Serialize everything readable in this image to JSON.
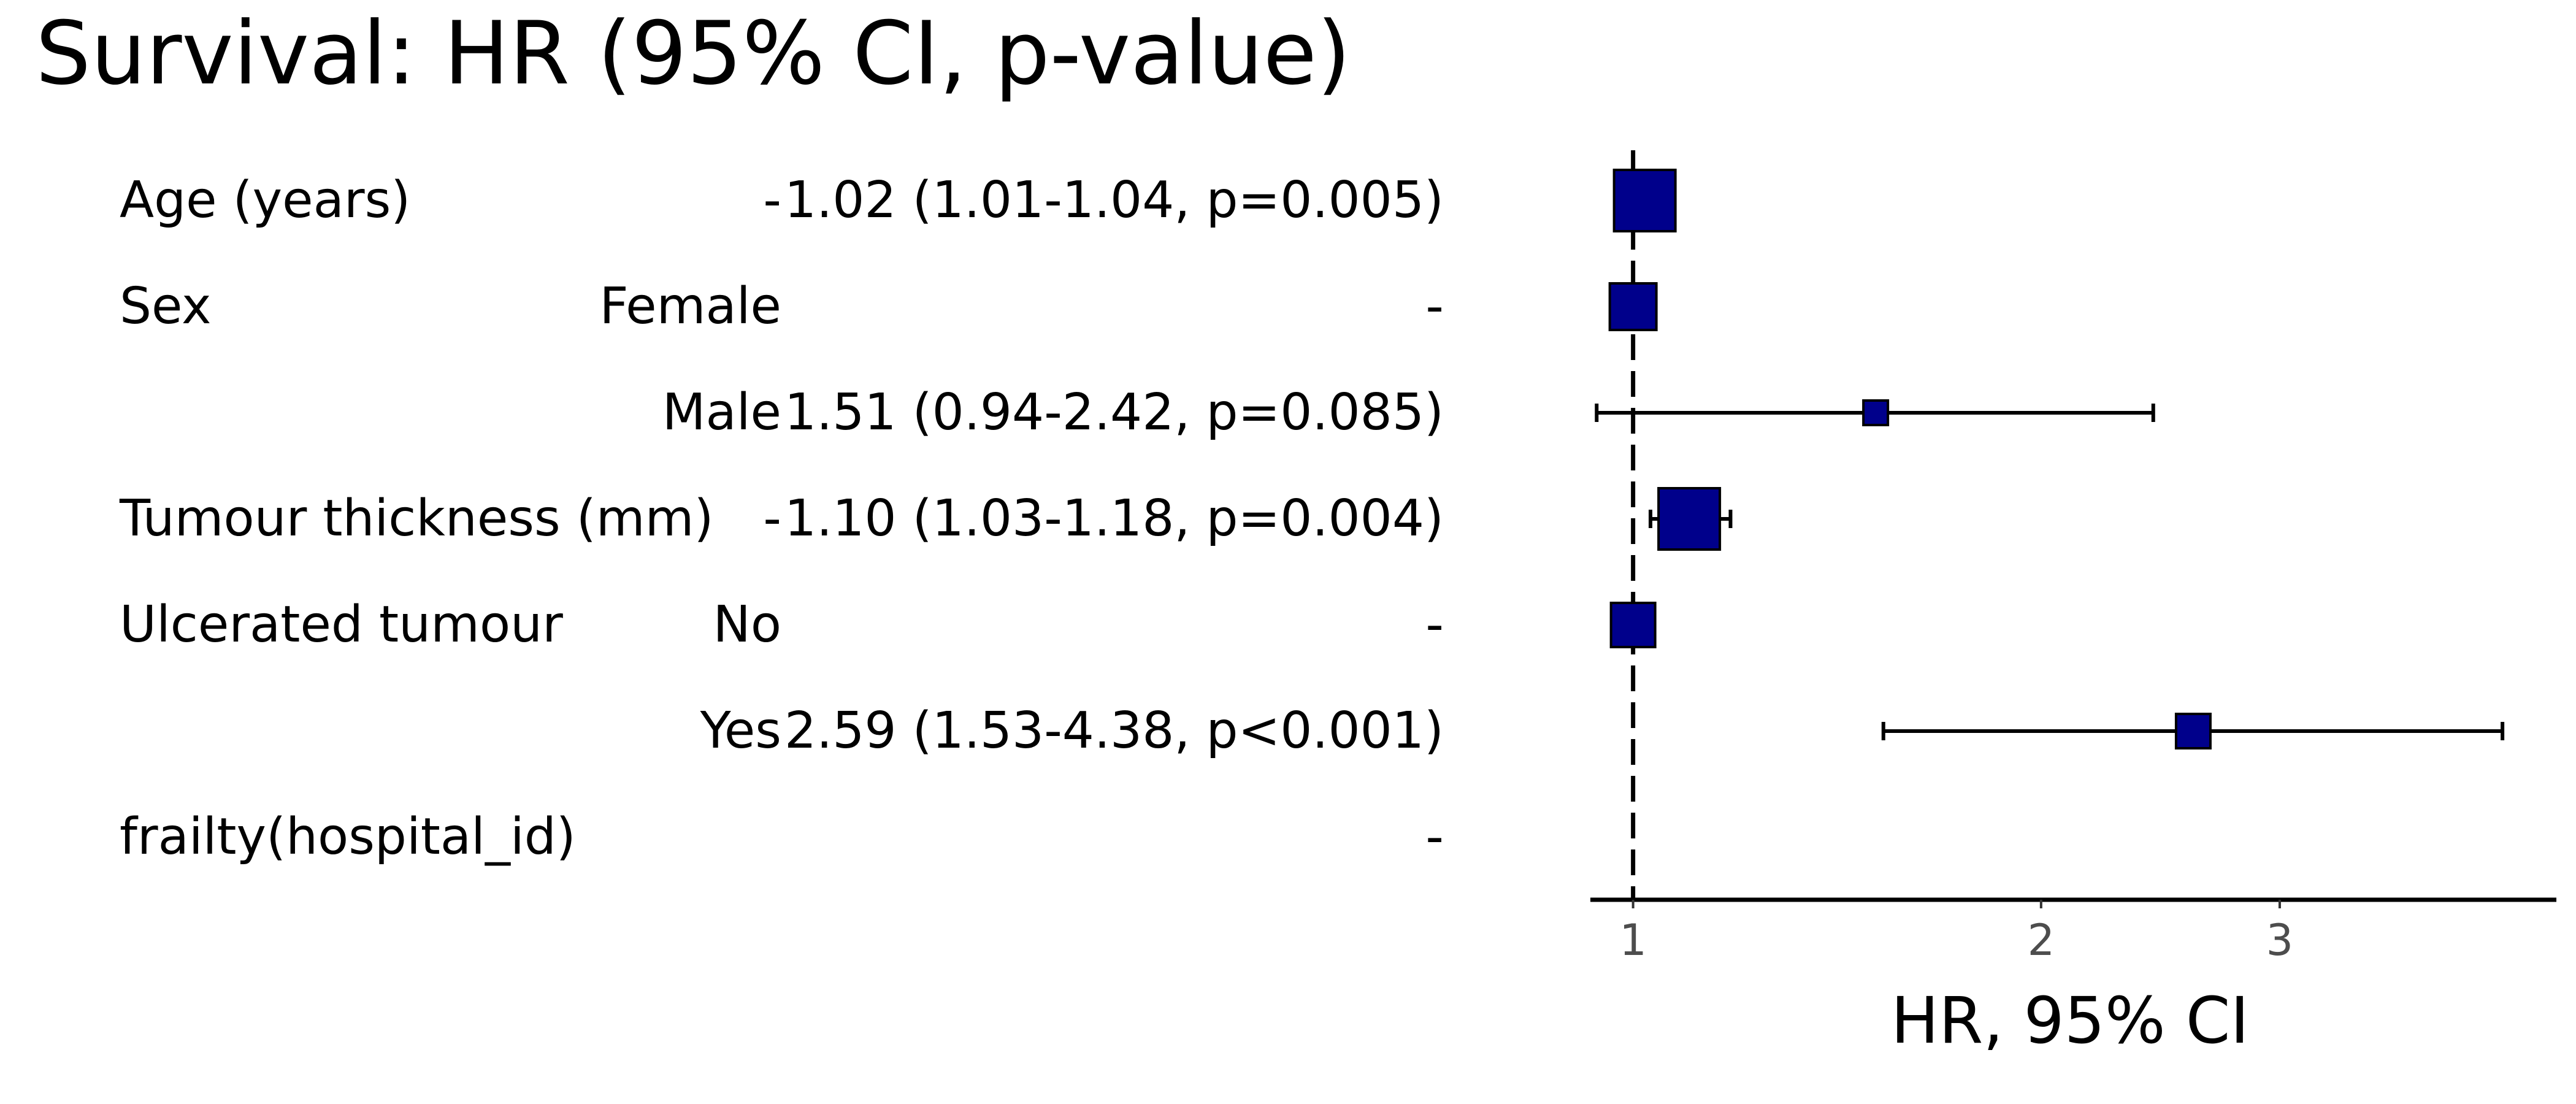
{
  "title": "Survival: HR (95% CI, p-value)",
  "colors": {
    "box_fill": "#00008b",
    "box_stroke": "#000000",
    "line": "#000000",
    "tick_text": "#4d4d4d"
  },
  "table": {
    "rows": [
      {
        "variable": "Age (years)",
        "level": "-",
        "hr_text": "1.02 (1.01-1.04, p=0.005)"
      },
      {
        "variable": "Sex",
        "level": "Female",
        "hr_text": "-"
      },
      {
        "variable": "",
        "level": "Male",
        "hr_text": "1.51 (0.94-2.42, p=0.085)"
      },
      {
        "variable": "Tumour thickness (mm)",
        "level": "-",
        "hr_text": "1.10 (1.03-1.18, p=0.004)"
      },
      {
        "variable": "Ulcerated tumour",
        "level": "No",
        "hr_text": "-"
      },
      {
        "variable": "",
        "level": "Yes",
        "hr_text": "2.59 (1.53-4.38, p<0.001)"
      },
      {
        "variable": "frailty(hospital_id)",
        "level": "",
        "hr_text": "-"
      }
    ]
  },
  "chart_data": {
    "type": "scatter",
    "title": "Survival: HR (95% CI, p-value)",
    "xlabel": "HR, 95% CI",
    "ylabel": "",
    "x_scale": "log",
    "xlim": [
      0.93,
      4.8
    ],
    "xticks": [
      1,
      2,
      3
    ],
    "reference_line": 1,
    "grid": false,
    "legend": "none",
    "points": [
      {
        "row": 0,
        "hr": 1.02,
        "lower": 1.01,
        "upper": 1.04,
        "weight": 1.0
      },
      {
        "row": 1,
        "hr": 1.0,
        "lower": null,
        "upper": null,
        "weight": 0.7,
        "reference": true
      },
      {
        "row": 2,
        "hr": 1.51,
        "lower": 0.94,
        "upper": 2.42,
        "weight": 0.25
      },
      {
        "row": 3,
        "hr": 1.1,
        "lower": 1.03,
        "upper": 1.18,
        "weight": 1.0
      },
      {
        "row": 4,
        "hr": 1.0,
        "lower": null,
        "upper": null,
        "weight": 0.65,
        "reference": true
      },
      {
        "row": 5,
        "hr": 2.59,
        "lower": 1.53,
        "upper": 4.38,
        "weight": 0.45
      }
    ]
  }
}
